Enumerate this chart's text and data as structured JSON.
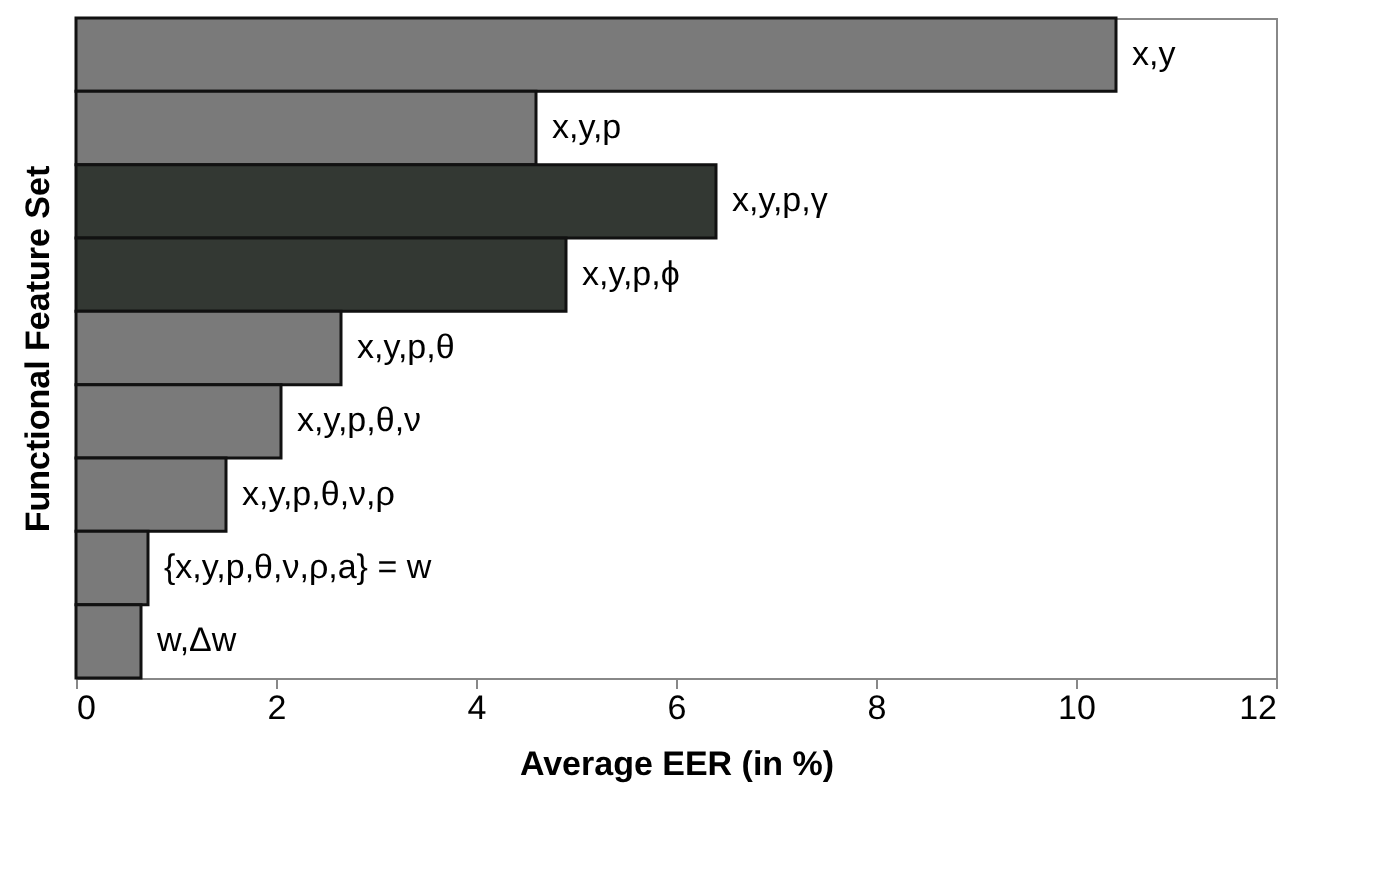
{
  "chart_data": {
    "type": "bar",
    "orientation": "horizontal",
    "xlabel": "Average EER (in %)",
    "ylabel": "Functional Feature Set",
    "categories": [
      "x,y",
      "x,y,p",
      "x,y,p,γ",
      "x,y,p,ϕ",
      "x,y,p,θ",
      "x,y,p,θ,ν",
      "x,y,p,θ,ν,ρ",
      "{x,y,p,θ,ν,ρ,a} = w",
      "w,Δw"
    ],
    "values": [
      10.4,
      4.6,
      6.4,
      4.9,
      2.65,
      2.05,
      1.5,
      0.72,
      0.65
    ],
    "colors": [
      "#7a7a7a",
      "#7a7a7a",
      "#333833",
      "#333833",
      "#7a7a7a",
      "#7a7a7a",
      "#7a7a7a",
      "#7a7a7a",
      "#7a7a7a"
    ],
    "xlim": [
      0,
      12
    ],
    "xticks": [
      0,
      2,
      4,
      6,
      8,
      10,
      12
    ],
    "grid": false,
    "tick_labels": "x"
  }
}
